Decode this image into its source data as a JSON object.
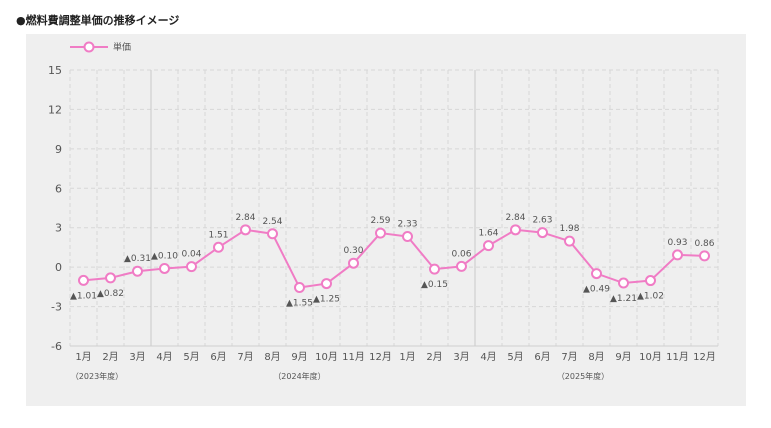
{
  "page": {
    "heading": "●燃料費調整単価の推移イメージ"
  },
  "colors": {
    "series": "#f07cc5",
    "grid": "#d7d7d7",
    "panel": "#efefef"
  },
  "chart_data": {
    "type": "line",
    "title": "燃料費調整単価の推移イメージ",
    "legend": {
      "position": "top-left",
      "entries": [
        "単価"
      ]
    },
    "ylim": [
      -6,
      15
    ],
    "yticks": [
      15,
      12,
      9,
      6,
      3,
      0,
      -3,
      -6
    ],
    "grid": true,
    "categories": [
      "1月",
      "2月",
      "3月",
      "4月",
      "5月",
      "6月",
      "7月",
      "8月",
      "9月",
      "10月",
      "11月",
      "12月",
      "1月",
      "2月",
      "3月",
      "4月",
      "5月",
      "6月",
      "7月",
      "8月",
      "9月",
      "10月",
      "11月",
      "12月"
    ],
    "fiscal_years": [
      {
        "label": "（2023年度）",
        "at": 0.5
      },
      {
        "label": "（2024年度）",
        "at": 8
      },
      {
        "label": "（2025年度）",
        "at": 18.5
      }
    ],
    "separators_after": [
      2,
      14
    ],
    "series": [
      {
        "name": "単価",
        "values": [
          -1.01,
          -0.82,
          -0.31,
          -0.1,
          0.04,
          1.51,
          2.84,
          2.54,
          -1.55,
          -1.25,
          0.3,
          2.59,
          2.33,
          -0.15,
          0.06,
          1.64,
          2.84,
          2.63,
          1.98,
          -0.49,
          -1.21,
          -1.02,
          0.93,
          0.86
        ],
        "labels": [
          "▲1.01",
          "▲0.82",
          "▲0.31",
          "▲0.10",
          "0.04",
          "1.51",
          "2.84",
          "2.54",
          "▲1.55",
          "▲1.25",
          "0.30",
          "2.59",
          "2.33",
          "▲0.15",
          "0.06",
          "1.64",
          "2.84",
          "2.63",
          "1.98",
          "▲0.49",
          "▲1.21",
          "▲1.02",
          "0.93",
          "0.86"
        ],
        "label_pos": [
          "below",
          "below",
          "above",
          "above",
          "above",
          "above",
          "above",
          "above",
          "below",
          "below",
          "above",
          "above",
          "above",
          "below",
          "above",
          "above",
          "above",
          "above",
          "above",
          "below",
          "below",
          "below",
          "above",
          "above"
        ]
      }
    ]
  }
}
